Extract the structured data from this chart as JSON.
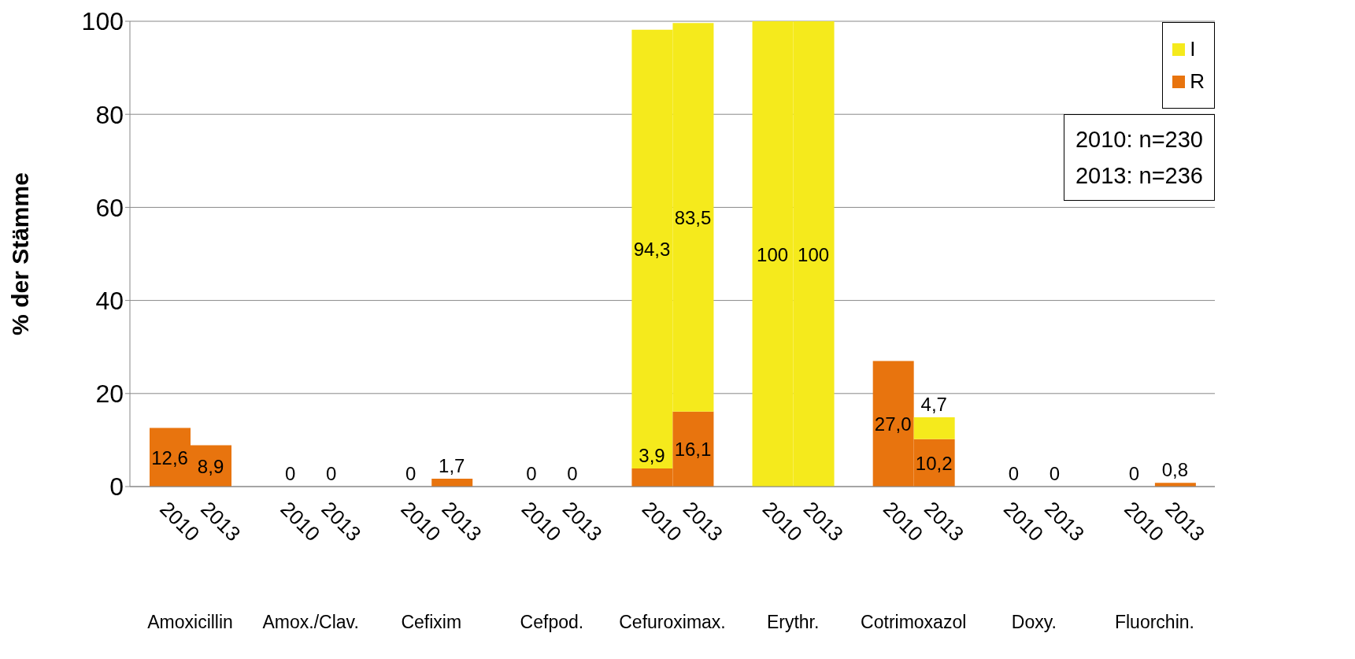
{
  "chart_data": {
    "type": "bar",
    "stacked": true,
    "ylabel": "% der Stämme",
    "categories": [
      "2010",
      "2013",
      "2010",
      "2013",
      "2010",
      "2013",
      "2010",
      "2013",
      "2010",
      "2013",
      "2010",
      "2013",
      "2010",
      "2013",
      "2010",
      "2013",
      "2010",
      "2013"
    ],
    "series": [
      {
        "name": "R",
        "color": "#e8740e",
        "values": [
          12.6,
          8.9,
          0,
          0,
          0,
          1.7,
          0,
          0,
          3.9,
          16.1,
          0,
          0,
          27.0,
          10.2,
          0,
          0,
          0,
          0.8
        ],
        "value_labels": [
          "12,6",
          "8,9",
          "0",
          "0",
          "0",
          "1,7",
          "0",
          "0",
          "3,9",
          "16,1",
          null,
          null,
          "27,0",
          "10,2",
          "0",
          "0",
          "0",
          "0,8"
        ]
      },
      {
        "name": "I",
        "color": "#f5ea1c",
        "values": [
          0,
          0,
          0,
          0,
          0,
          0,
          0,
          0,
          94.3,
          83.5,
          100,
          100,
          0,
          4.7,
          0,
          0,
          0,
          0
        ],
        "value_labels": [
          null,
          null,
          null,
          null,
          null,
          null,
          null,
          null,
          "94,3",
          "83,5",
          "100",
          "100",
          null,
          "4,7",
          null,
          null,
          null,
          null
        ]
      }
    ],
    "ylim": [
      0,
      100
    ],
    "yticks": [
      0,
      20,
      40,
      60,
      80,
      100
    ],
    "grid": "y",
    "legend": "top right",
    "annotations": [
      "Amoxicillin",
      "Amox./Clav.",
      "Cefixim",
      "Cefpod.",
      "Cefuroximax.",
      "Erythr.",
      "Cotrimoxazol",
      "Doxy.",
      "Fluorchin.",
      "2010: n=230",
      "2013: n=236"
    ]
  }
}
